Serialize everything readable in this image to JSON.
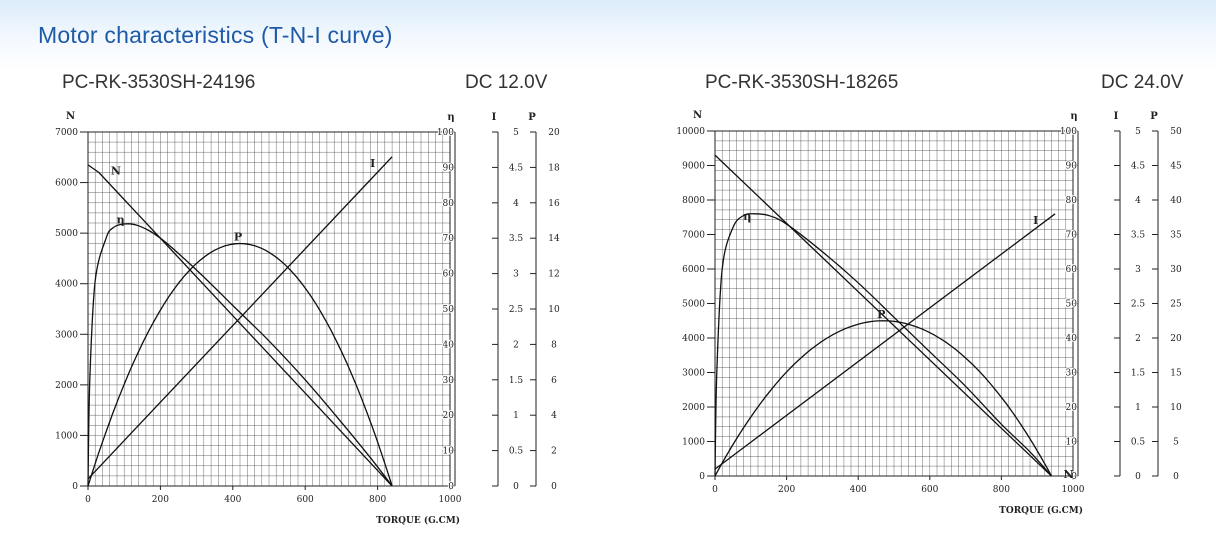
{
  "header": {
    "title": "Motor characteristics (T-N-I curve)"
  },
  "chart_data": [
    {
      "type": "line",
      "model": "PC-RK-3530SH-24196",
      "voltage": "DC 12.0V",
      "xlabel": "TORQUE (G.CM)",
      "xlim": [
        0,
        1000
      ],
      "xticks": [
        0,
        200,
        400,
        600,
        800,
        1000
      ],
      "axes": {
        "N": {
          "label": "N",
          "range": [
            0,
            7000
          ],
          "ticks": [
            0,
            1000,
            2000,
            3000,
            4000,
            5000,
            6000,
            7000
          ]
        },
        "eta": {
          "label": "η",
          "range": [
            0,
            100
          ],
          "ticks": [
            0,
            10,
            20,
            30,
            40,
            50,
            60,
            70,
            80,
            90,
            100
          ]
        },
        "I": {
          "label": "I",
          "range": [
            0,
            5
          ],
          "ticks": [
            "0",
            "0.5",
            "1",
            "1.5",
            "2",
            "2.5",
            "3",
            "3.5",
            "4",
            "4.5",
            "5"
          ]
        },
        "P": {
          "label": "P",
          "range": [
            0,
            20
          ],
          "ticks": [
            0,
            2,
            4,
            6,
            8,
            10,
            12,
            14,
            16,
            18,
            20
          ]
        }
      },
      "series": [
        {
          "name": "N",
          "axis": "N",
          "x": [
            0,
            30,
            840
          ],
          "y": [
            6350,
            6200,
            0
          ]
        },
        {
          "name": "I",
          "axis": "I",
          "x": [
            0,
            840
          ],
          "y": [
            0.1,
            4.65
          ]
        },
        {
          "name": "P",
          "axis": "P",
          "stall_torque": 840,
          "max_x": 420,
          "max_y": 13.7
        },
        {
          "name": "η",
          "axis": "eta",
          "x": [
            0,
            5,
            20,
            50,
            70,
            100,
            140,
            200,
            300,
            400,
            500,
            600,
            700,
            780,
            840
          ],
          "y": [
            0,
            30,
            58,
            70,
            73,
            74,
            73.5,
            70,
            61,
            51,
            41,
            30,
            18,
            8,
            0
          ]
        }
      ]
    },
    {
      "type": "line",
      "model": "PC-RK-3530SH-18265",
      "voltage": "DC 24.0V",
      "xlabel": "TORQUE (G.CM)",
      "xlim": [
        0,
        1000
      ],
      "xticks": [
        0,
        200,
        400,
        600,
        800,
        1000
      ],
      "axes": {
        "N": {
          "label": "N",
          "range": [
            0,
            10000
          ],
          "ticks": [
            0,
            1000,
            2000,
            3000,
            4000,
            5000,
            6000,
            7000,
            8000,
            9000,
            10000
          ]
        },
        "eta": {
          "label": "η",
          "range": [
            0,
            100
          ],
          "ticks": [
            0,
            10,
            20,
            30,
            40,
            50,
            60,
            70,
            80,
            90,
            100
          ]
        },
        "I": {
          "label": "I",
          "range": [
            0,
            5
          ],
          "ticks": [
            "0",
            "0.5",
            "1",
            "1.5",
            "2",
            "2.5",
            "3",
            "3.5",
            "4",
            "4.5",
            "5"
          ]
        },
        "P": {
          "label": "P",
          "range": [
            0,
            50
          ],
          "ticks": [
            0,
            5,
            10,
            15,
            20,
            25,
            30,
            35,
            40,
            45,
            50
          ]
        }
      },
      "series": [
        {
          "name": "N",
          "axis": "N",
          "x": [
            0,
            940
          ],
          "y": [
            9300,
            0
          ]
        },
        {
          "name": "I",
          "axis": "I",
          "x": [
            0,
            950
          ],
          "y": [
            0.1,
            3.8
          ]
        },
        {
          "name": "P",
          "axis": "P",
          "stall_torque": 940,
          "max_x": 470,
          "max_y": 22.5
        },
        {
          "name": "η",
          "axis": "eta",
          "x": [
            0,
            5,
            20,
            50,
            80,
            110,
            150,
            200,
            300,
            400,
            500,
            600,
            700,
            800,
            880,
            940
          ],
          "y": [
            0,
            30,
            60,
            72,
            75.5,
            76,
            75.5,
            73,
            65,
            56,
            46,
            36,
            26,
            15,
            7,
            0
          ]
        }
      ]
    }
  ]
}
